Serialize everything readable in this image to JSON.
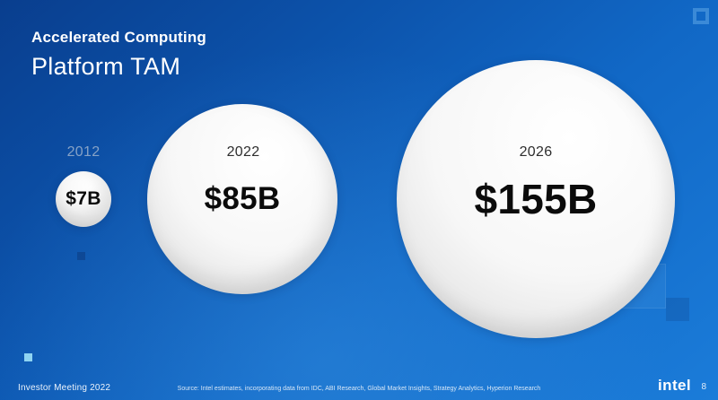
{
  "slide": {
    "title_line1": "Accelerated Computing",
    "title_line2": "Platform TAM",
    "footer_left": "Investor Meeting 2022",
    "source": "Source: Intel estimates, incorporating data from IDC, ABI Research, Global Market Insights, Strategy Analytics, Hyperion Research",
    "brand": "intel",
    "page_number": "8"
  },
  "bubbles": [
    {
      "year": "2012",
      "value": "$7B"
    },
    {
      "year": "2022",
      "value": "$85B"
    },
    {
      "year": "2026",
      "value": "$155B"
    }
  ],
  "chart_data": {
    "type": "scatter",
    "subtype": "bubble",
    "title": "Accelerated Computing Platform TAM",
    "categories": [
      "2012",
      "2022",
      "2026"
    ],
    "series": [
      {
        "name": "Platform TAM ($B)",
        "values": [
          7,
          85,
          155
        ]
      }
    ],
    "value_labels": [
      "$7B",
      "$85B",
      "$155B"
    ],
    "legend": "none",
    "layout_hints": "bubble area proportional to value; years labeled above/inside bubbles; no axes or gridlines"
  },
  "colors": {
    "background_top": "#093e8e",
    "background_bottom": "#1b7cd9",
    "bubble_fill": "#f2f2f2",
    "value_text": "#0b0b0b",
    "muted_year_text": "#86a2c6",
    "accent_cyan_square": "#8fd4f2",
    "title_text": "#ffffff"
  }
}
